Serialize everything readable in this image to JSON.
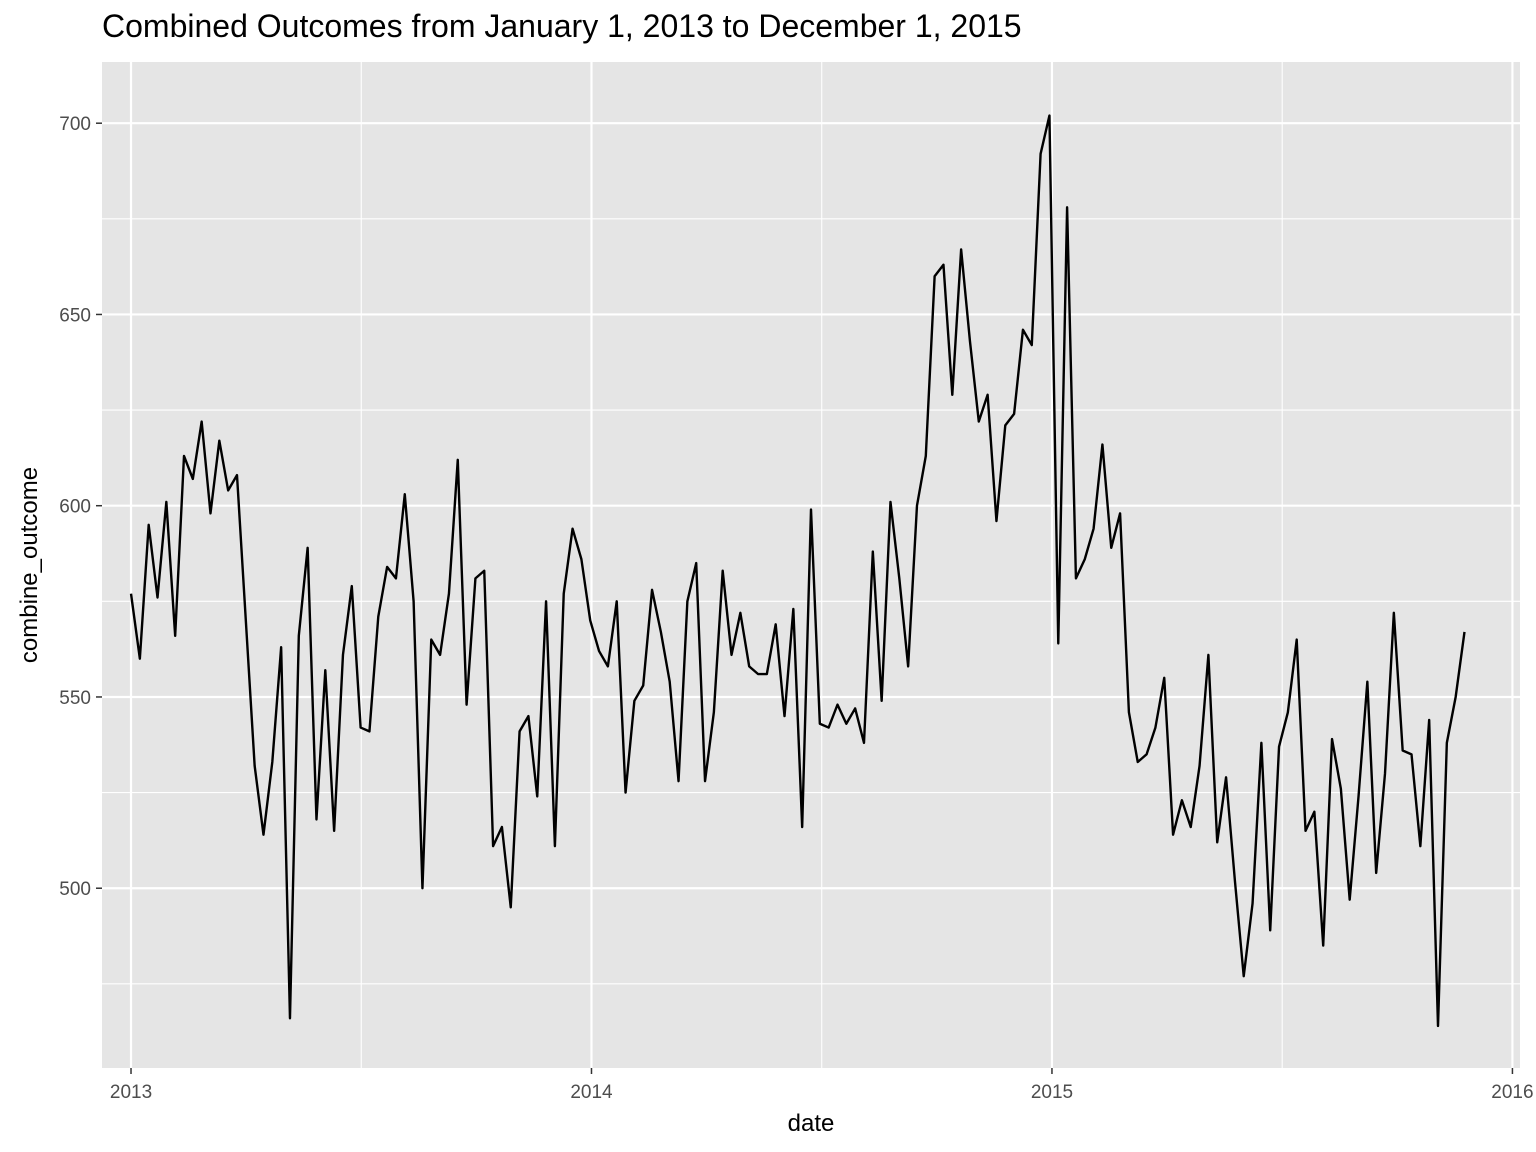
{
  "chart_data": {
    "type": "line",
    "title": "Combined Outcomes from January 1, 2013 to December 1, 2015",
    "xlabel": "date",
    "ylabel": "combine_outcome",
    "x_scale": "date",
    "xlim": [
      "2012-12-09",
      "2016-01-07"
    ],
    "ylim": [
      453,
      716
    ],
    "grid": true,
    "background_color": "#e5e5e5",
    "grid_color": "#ffffff",
    "line_color": "#000000",
    "x_ticks": [
      {
        "label": "2013",
        "value": "2013-01-01"
      },
      {
        "label": "2014",
        "value": "2014-01-01"
      },
      {
        "label": "2015",
        "value": "2015-01-01"
      },
      {
        "label": "2016",
        "value": "2016-01-01"
      }
    ],
    "y_ticks": [
      {
        "label": "500",
        "value": 500
      },
      {
        "label": "550",
        "value": 550
      },
      {
        "label": "600",
        "value": 600
      },
      {
        "label": "650",
        "value": 650
      },
      {
        "label": "700",
        "value": 700
      }
    ],
    "series": [
      {
        "points": [
          [
            "2013-01-01",
            577
          ],
          [
            "2013-01-08",
            560
          ],
          [
            "2013-01-15",
            595
          ],
          [
            "2013-01-22",
            576
          ],
          [
            "2013-01-29",
            601
          ],
          [
            "2013-02-05",
            566
          ],
          [
            "2013-02-12",
            613
          ],
          [
            "2013-02-19",
            607
          ],
          [
            "2013-02-26",
            622
          ],
          [
            "2013-03-05",
            598
          ],
          [
            "2013-03-12",
            617
          ],
          [
            "2013-03-19",
            604
          ],
          [
            "2013-03-26",
            608
          ],
          [
            "2013-04-09",
            532
          ],
          [
            "2013-04-16",
            514
          ],
          [
            "2013-04-23",
            533
          ],
          [
            "2013-04-30",
            563
          ],
          [
            "2013-05-07",
            466
          ],
          [
            "2013-05-14",
            566
          ],
          [
            "2013-05-21",
            589
          ],
          [
            "2013-05-28",
            518
          ],
          [
            "2013-06-04",
            557
          ],
          [
            "2013-06-11",
            515
          ],
          [
            "2013-06-18",
            561
          ],
          [
            "2013-06-25",
            579
          ],
          [
            "2013-07-02",
            542
          ],
          [
            "2013-07-09",
            541
          ],
          [
            "2013-07-16",
            571
          ],
          [
            "2013-07-23",
            584
          ],
          [
            "2013-07-30",
            581
          ],
          [
            "2013-08-06",
            603
          ],
          [
            "2013-08-13",
            575
          ],
          [
            "2013-08-20",
            500
          ],
          [
            "2013-08-27",
            565
          ],
          [
            "2013-09-03",
            561
          ],
          [
            "2013-09-10",
            577
          ],
          [
            "2013-09-17",
            612
          ],
          [
            "2013-09-24",
            548
          ],
          [
            "2013-10-01",
            581
          ],
          [
            "2013-10-08",
            583
          ],
          [
            "2013-10-15",
            511
          ],
          [
            "2013-10-22",
            516
          ],
          [
            "2013-10-29",
            495
          ],
          [
            "2013-11-05",
            541
          ],
          [
            "2013-11-12",
            545
          ],
          [
            "2013-11-19",
            524
          ],
          [
            "2013-11-26",
            575
          ],
          [
            "2013-12-03",
            511
          ],
          [
            "2013-12-10",
            577
          ],
          [
            "2013-12-17",
            594
          ],
          [
            "2013-12-24",
            586
          ],
          [
            "2013-12-31",
            570
          ],
          [
            "2014-01-07",
            562
          ],
          [
            "2014-01-14",
            558
          ],
          [
            "2014-01-21",
            575
          ],
          [
            "2014-01-28",
            525
          ],
          [
            "2014-02-04",
            549
          ],
          [
            "2014-02-11",
            553
          ],
          [
            "2014-02-18",
            578
          ],
          [
            "2014-02-25",
            567
          ],
          [
            "2014-03-04",
            554
          ],
          [
            "2014-03-11",
            528
          ],
          [
            "2014-03-18",
            575
          ],
          [
            "2014-03-25",
            585
          ],
          [
            "2014-04-01",
            528
          ],
          [
            "2014-04-08",
            546
          ],
          [
            "2014-04-15",
            583
          ],
          [
            "2014-04-22",
            561
          ],
          [
            "2014-04-29",
            572
          ],
          [
            "2014-05-06",
            558
          ],
          [
            "2014-05-13",
            556
          ],
          [
            "2014-05-20",
            556
          ],
          [
            "2014-05-27",
            569
          ],
          [
            "2014-06-03",
            545
          ],
          [
            "2014-06-10",
            573
          ],
          [
            "2014-06-17",
            516
          ],
          [
            "2014-06-24",
            599
          ],
          [
            "2014-07-01",
            543
          ],
          [
            "2014-07-08",
            542
          ],
          [
            "2014-07-15",
            548
          ],
          [
            "2014-07-22",
            543
          ],
          [
            "2014-07-29",
            547
          ],
          [
            "2014-08-05",
            538
          ],
          [
            "2014-08-12",
            588
          ],
          [
            "2014-08-19",
            549
          ],
          [
            "2014-08-26",
            601
          ],
          [
            "2014-09-02",
            581
          ],
          [
            "2014-09-09",
            558
          ],
          [
            "2014-09-16",
            600
          ],
          [
            "2014-09-23",
            613
          ],
          [
            "2014-09-30",
            660
          ],
          [
            "2014-10-07",
            663
          ],
          [
            "2014-10-14",
            629
          ],
          [
            "2014-10-21",
            667
          ],
          [
            "2014-10-28",
            643
          ],
          [
            "2014-11-04",
            622
          ],
          [
            "2014-11-11",
            629
          ],
          [
            "2014-11-18",
            596
          ],
          [
            "2014-11-25",
            621
          ],
          [
            "2014-12-02",
            624
          ],
          [
            "2014-12-09",
            646
          ],
          [
            "2014-12-16",
            642
          ],
          [
            "2014-12-23",
            692
          ],
          [
            "2014-12-30",
            702
          ],
          [
            "2015-01-06",
            564
          ],
          [
            "2015-01-13",
            678
          ],
          [
            "2015-01-20",
            581
          ],
          [
            "2015-01-27",
            586
          ],
          [
            "2015-02-03",
            594
          ],
          [
            "2015-02-10",
            616
          ],
          [
            "2015-02-17",
            589
          ],
          [
            "2015-02-24",
            598
          ],
          [
            "2015-03-03",
            546
          ],
          [
            "2015-03-10",
            533
          ],
          [
            "2015-03-17",
            535
          ],
          [
            "2015-03-24",
            542
          ],
          [
            "2015-03-31",
            555
          ],
          [
            "2015-04-07",
            514
          ],
          [
            "2015-04-14",
            523
          ],
          [
            "2015-04-21",
            516
          ],
          [
            "2015-04-28",
            532
          ],
          [
            "2015-05-05",
            561
          ],
          [
            "2015-05-12",
            512
          ],
          [
            "2015-05-19",
            529
          ],
          [
            "2015-05-26",
            502
          ],
          [
            "2015-06-02",
            477
          ],
          [
            "2015-06-09",
            496
          ],
          [
            "2015-06-16",
            538
          ],
          [
            "2015-06-23",
            489
          ],
          [
            "2015-06-30",
            537
          ],
          [
            "2015-07-07",
            546
          ],
          [
            "2015-07-14",
            565
          ],
          [
            "2015-07-21",
            515
          ],
          [
            "2015-07-28",
            520
          ],
          [
            "2015-08-04",
            485
          ],
          [
            "2015-08-11",
            539
          ],
          [
            "2015-08-18",
            526
          ],
          [
            "2015-08-25",
            497
          ],
          [
            "2015-09-01",
            524
          ],
          [
            "2015-09-08",
            554
          ],
          [
            "2015-09-15",
            504
          ],
          [
            "2015-09-22",
            530
          ],
          [
            "2015-09-29",
            572
          ],
          [
            "2015-10-06",
            536
          ],
          [
            "2015-10-13",
            535
          ],
          [
            "2015-10-20",
            511
          ],
          [
            "2015-10-27",
            544
          ],
          [
            "2015-11-03",
            464
          ],
          [
            "2015-11-10",
            538
          ],
          [
            "2015-11-17",
            550
          ],
          [
            "2015-11-24",
            567
          ]
        ]
      }
    ]
  }
}
